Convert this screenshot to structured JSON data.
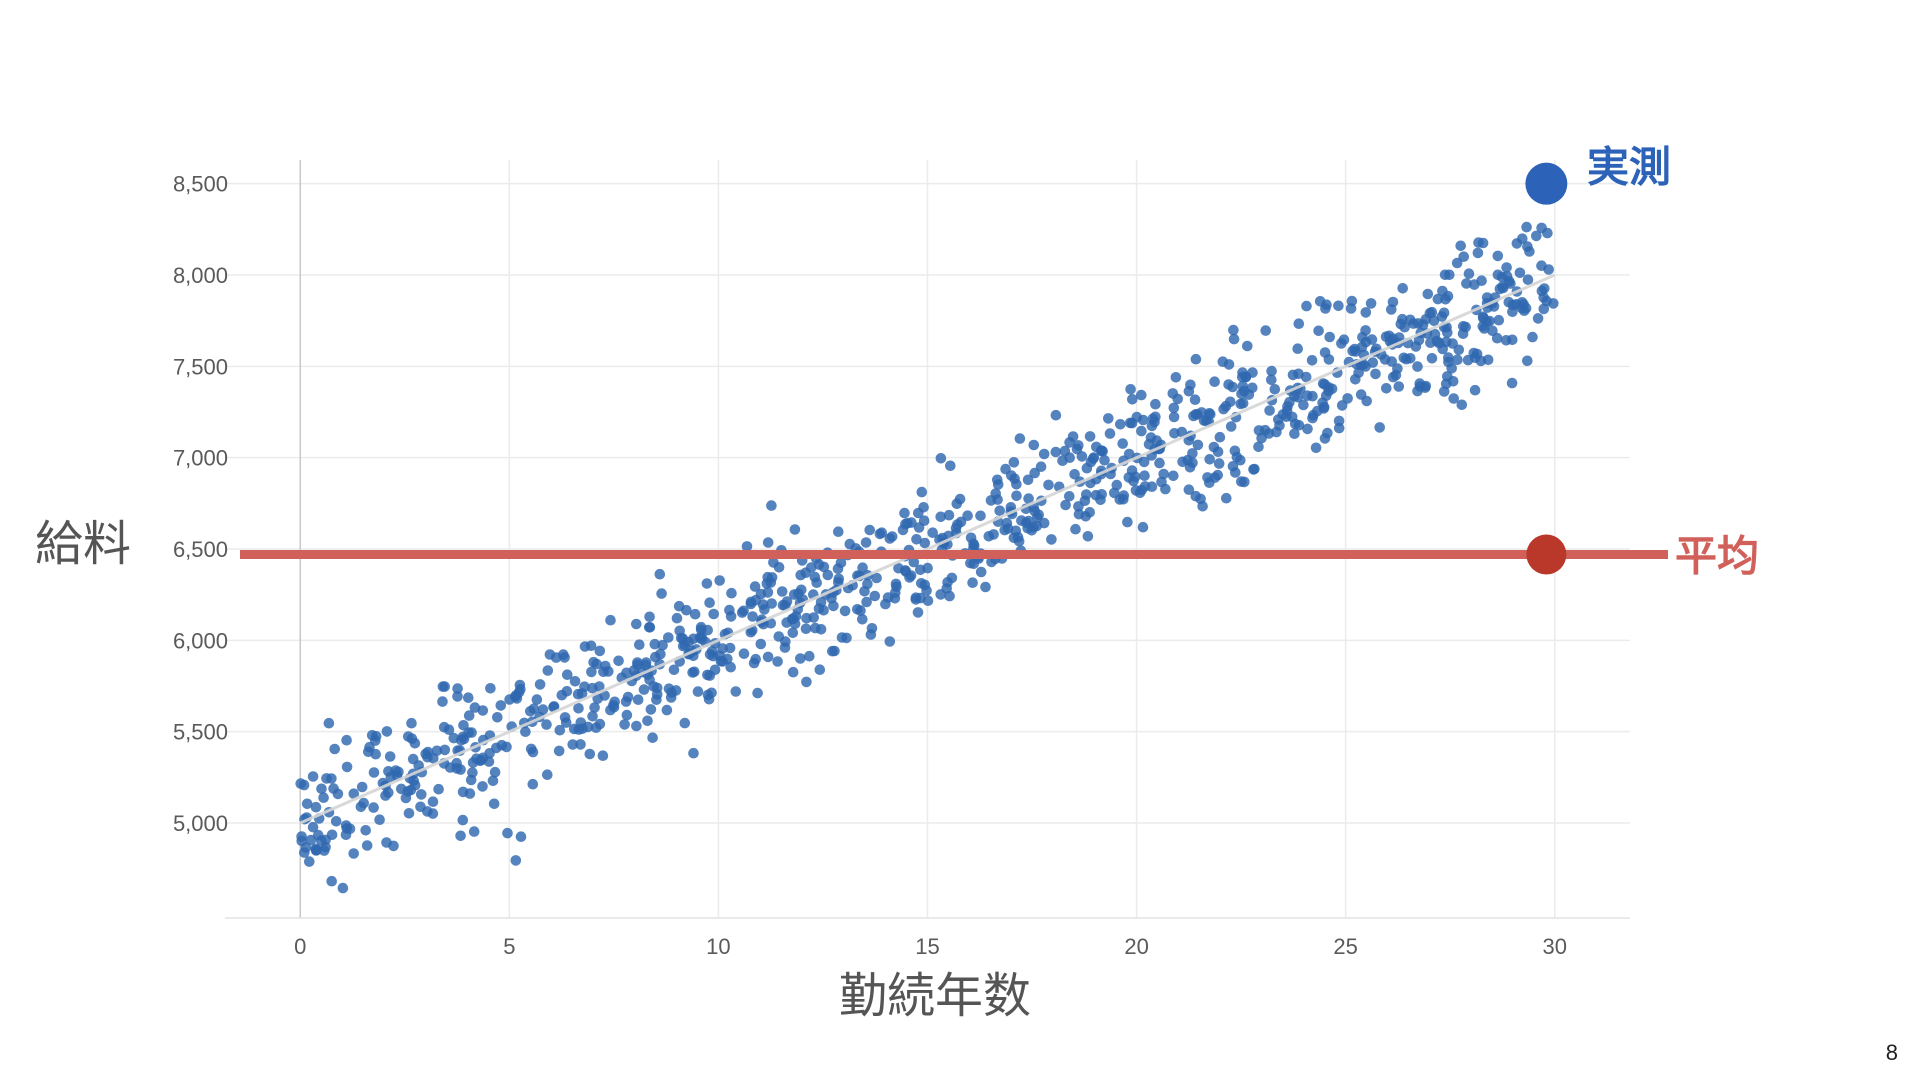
{
  "page_number": "8",
  "colors": {
    "points": "#2f68b0",
    "actual": "#2c63b8",
    "mean_line": "#d2605a",
    "mean_point": "#b9382a",
    "mean_text": "#d2605a",
    "trend": "#d5d5d5",
    "grid": "#ebebeb",
    "axis": "#c8c8c8"
  },
  "chart_data": {
    "type": "scatter",
    "xlabel": "勤続年数",
    "ylabel": "給料",
    "xlim": [
      -1.8,
      31.8
    ],
    "ylim": [
      4480,
      8750
    ],
    "x_ticks": [
      0,
      5,
      10,
      15,
      20,
      25,
      30
    ],
    "x_tick_labels": [
      "0",
      "5",
      "10",
      "15",
      "20",
      "25",
      "30"
    ],
    "y_ticks": [
      5000,
      5500,
      6000,
      6500,
      7000,
      7500,
      8000,
      8500
    ],
    "y_tick_labels": [
      "5,000",
      "5,500",
      "6,000",
      "6,500",
      "7,000",
      "7,500",
      "8,000",
      "8,500"
    ],
    "grid": true,
    "series": [
      {
        "point_count": 1000,
        "x_range": [
          0,
          30
        ],
        "trend": {
          "intercept": 5000,
          "slope": 100
        },
        "noise_sd": 190,
        "seed": 8
      }
    ],
    "mean_line": {
      "y": 6470,
      "label": "平均"
    },
    "actual_marker": {
      "x": 29.8,
      "y": 8500,
      "label": "実測"
    },
    "mean_marker": {
      "x": 29.8,
      "y": 6470
    }
  }
}
